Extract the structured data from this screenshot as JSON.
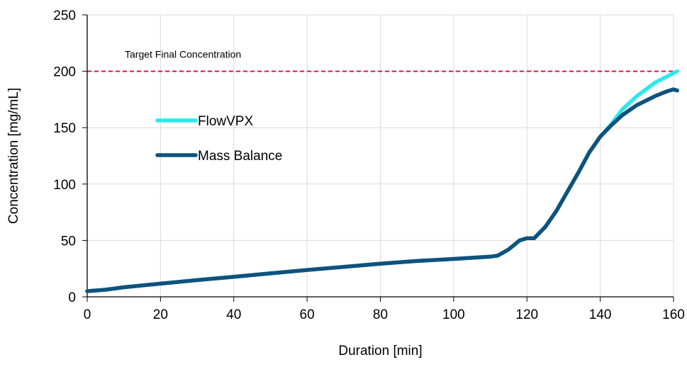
{
  "chart_data": {
    "type": "line",
    "xlabel": "Duration [min]",
    "ylabel": "Concentration [mg/mL]",
    "xlim": [
      0,
      160
    ],
    "ylim": [
      0,
      250
    ],
    "x_ticks": [
      0,
      20,
      40,
      60,
      80,
      100,
      120,
      140,
      160
    ],
    "y_ticks": [
      0,
      50,
      100,
      150,
      200,
      250
    ],
    "grid": true,
    "legend_placement": "upper-left inside plot",
    "reference_line": {
      "label": "Target Final Concentration",
      "y": 200,
      "color": "#d6174f"
    },
    "series": [
      {
        "name": "FlowVPX",
        "color": "#2fe8ea",
        "points": [
          [
            0,
            5
          ],
          [
            5,
            6.3
          ],
          [
            10,
            8.5
          ],
          [
            20,
            11.7
          ],
          [
            30,
            14.8
          ],
          [
            40,
            17.8
          ],
          [
            50,
            20.8
          ],
          [
            60,
            23.8
          ],
          [
            70,
            26.6
          ],
          [
            80,
            29.4
          ],
          [
            90,
            31.8
          ],
          [
            100,
            33.6
          ],
          [
            110,
            35.6
          ],
          [
            112,
            36.5
          ],
          [
            115,
            42
          ],
          [
            118,
            50
          ],
          [
            120,
            52
          ],
          [
            122,
            52
          ],
          [
            125,
            62
          ],
          [
            128,
            76
          ],
          [
            131,
            93
          ],
          [
            134,
            110
          ],
          [
            137,
            128
          ],
          [
            140,
            142
          ],
          [
            143,
            153
          ],
          [
            146,
            166
          ],
          [
            150,
            178
          ],
          [
            155,
            190
          ],
          [
            158,
            195
          ],
          [
            161,
            200
          ]
        ]
      },
      {
        "name": "Mass Balance",
        "color": "#0f527c",
        "points": [
          [
            0,
            5
          ],
          [
            5,
            6.3
          ],
          [
            10,
            8.5
          ],
          [
            20,
            11.7
          ],
          [
            30,
            14.8
          ],
          [
            40,
            17.8
          ],
          [
            50,
            20.8
          ],
          [
            60,
            23.8
          ],
          [
            70,
            26.6
          ],
          [
            80,
            29.4
          ],
          [
            90,
            31.8
          ],
          [
            100,
            33.6
          ],
          [
            110,
            35.6
          ],
          [
            112,
            36.5
          ],
          [
            115,
            42
          ],
          [
            118,
            50
          ],
          [
            120,
            52
          ],
          [
            122,
            52
          ],
          [
            125,
            62
          ],
          [
            128,
            76
          ],
          [
            131,
            93
          ],
          [
            134,
            110
          ],
          [
            137,
            128
          ],
          [
            140,
            142
          ],
          [
            143,
            152
          ],
          [
            146,
            161
          ],
          [
            150,
            170
          ],
          [
            155,
            178
          ],
          [
            158,
            182
          ],
          [
            160,
            184
          ],
          [
            161,
            183
          ]
        ]
      }
    ]
  }
}
